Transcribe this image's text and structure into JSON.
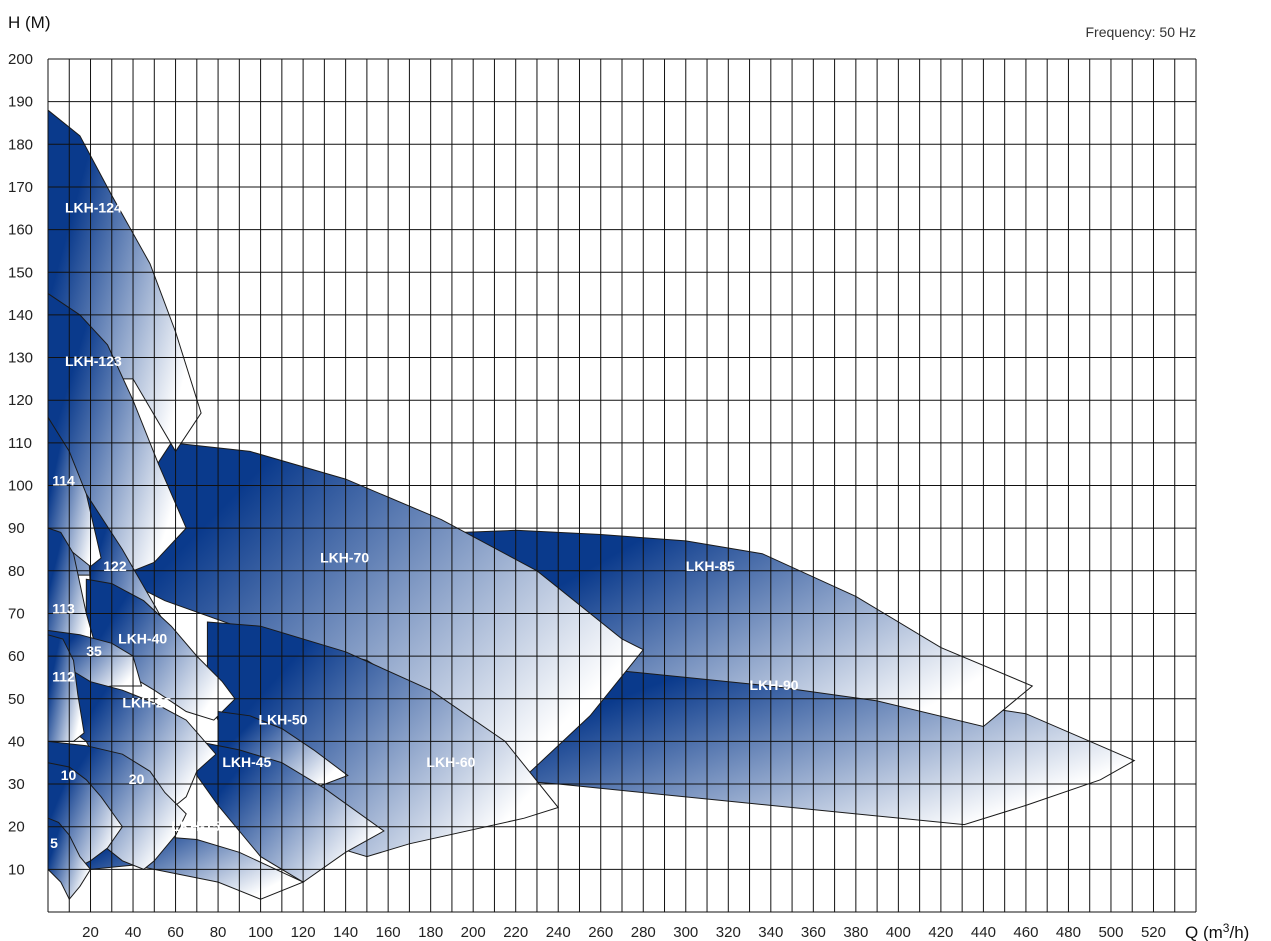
{
  "frequency_label": "Frequency: 50 Hz",
  "colors": {
    "dark": "#0a3a8c",
    "light": "#ffffff",
    "grid": "#111111"
  },
  "chart_data": {
    "type": "area",
    "title": "",
    "xlabel": "Q (m³/h)",
    "ylabel": "H (M)",
    "xlim": [
      0,
      540
    ],
    "ylim": [
      0,
      200
    ],
    "x_ticks": [
      20,
      40,
      60,
      80,
      100,
      120,
      140,
      160,
      180,
      200,
      220,
      240,
      260,
      280,
      300,
      320,
      340,
      360,
      380,
      400,
      420,
      440,
      460,
      480,
      500,
      520
    ],
    "x_tick_labels": [
      "20",
      "40",
      "60",
      "80",
      "100",
      "120",
      "140",
      "160",
      "180",
      "200",
      "220",
      "240",
      "260",
      "280",
      "300",
      "320",
      "340",
      "360",
      "380",
      "400",
      "420",
      "440",
      "460",
      "480",
      "500",
      "520"
    ],
    "y_ticks": [
      10,
      20,
      30,
      40,
      50,
      60,
      70,
      80,
      90,
      100,
      110,
      120,
      130,
      140,
      150,
      160,
      170,
      180,
      190,
      200
    ],
    "y_tick_labels": [
      "10",
      "20",
      "30",
      "40",
      "50",
      "60",
      "70",
      "80",
      "90",
      "100",
      "110",
      "120",
      "130",
      "140",
      "150",
      "160",
      "170",
      "180",
      "190",
      "200"
    ],
    "grid": true,
    "series": [
      {
        "name": "LKH-90",
        "label_pos": [
          330,
          52
        ],
        "poly": [
          [
            195,
            55
          ],
          [
            270,
            56.5
          ],
          [
            335,
            54.5
          ],
          [
            400,
            51
          ],
          [
            460,
            46.5
          ],
          [
            511,
            35.5
          ],
          [
            495,
            31
          ],
          [
            460,
            25
          ],
          [
            431,
            20.5
          ],
          [
            380,
            23
          ],
          [
            340,
            25
          ],
          [
            280,
            28
          ],
          [
            240,
            30
          ],
          [
            215,
            31
          ]
        ]
      },
      {
        "name": "LKH-85",
        "label_pos": [
          300,
          80
        ],
        "poly": [
          [
            195,
            89
          ],
          [
            220,
            89.5
          ],
          [
            260,
            88.5
          ],
          [
            300,
            87
          ],
          [
            336,
            84
          ],
          [
            380,
            74
          ],
          [
            420,
            62
          ],
          [
            463,
            53
          ],
          [
            440,
            43.5
          ],
          [
            390,
            49.5
          ],
          [
            340,
            53
          ],
          [
            300,
            55
          ],
          [
            270,
            56.5
          ],
          [
            240,
            57.5
          ],
          [
            195,
            58
          ]
        ]
      },
      {
        "name": "LKH-70",
        "label_pos": [
          128,
          82
        ],
        "poly": [
          [
            25,
            85
          ],
          [
            58,
            110
          ],
          [
            95,
            108
          ],
          [
            140,
            101.5
          ],
          [
            185,
            92
          ],
          [
            230,
            80
          ],
          [
            270,
            64
          ],
          [
            280,
            61.5
          ],
          [
            255,
            46
          ],
          [
            225,
            32
          ],
          [
            195,
            45
          ],
          [
            150,
            59
          ],
          [
            100,
            65
          ],
          [
            55,
            73
          ],
          [
            35,
            78
          ]
        ]
      },
      {
        "name": "LKH-60",
        "label_pos": [
          178,
          34
        ],
        "poly": [
          [
            75,
            68
          ],
          [
            100,
            67
          ],
          [
            140,
            61
          ],
          [
            180,
            52
          ],
          [
            215,
            40
          ],
          [
            240,
            24.5
          ],
          [
            224,
            22
          ],
          [
            170,
            16
          ],
          [
            150,
            13
          ],
          [
            140,
            14.5
          ],
          [
            110,
            22
          ],
          [
            90,
            35
          ],
          [
            75,
            50
          ]
        ]
      },
      {
        "name": "LKH-124",
        "label_pos": [
          8,
          164
        ],
        "poly": [
          [
            0,
            188
          ],
          [
            15,
            182
          ],
          [
            30,
            168
          ],
          [
            48,
            152
          ],
          [
            60,
            136
          ],
          [
            72,
            117
          ],
          [
            60,
            108
          ],
          [
            40,
            125
          ],
          [
            0,
            125
          ]
        ]
      },
      {
        "name": "LKH-123",
        "label_pos": [
          8,
          128
        ],
        "poly": [
          [
            0,
            145
          ],
          [
            15,
            140
          ],
          [
            28,
            133
          ],
          [
            40,
            120
          ],
          [
            52,
            105
          ],
          [
            65,
            90
          ],
          [
            50,
            82
          ],
          [
            35,
            79
          ],
          [
            0,
            79
          ]
        ]
      },
      {
        "name": "122",
        "label_pos": [
          26,
          80
        ],
        "poly": [
          [
            18,
            98
          ],
          [
            35,
            85
          ],
          [
            50,
            72
          ],
          [
            60,
            63
          ],
          [
            50,
            58
          ],
          [
            30,
            65
          ],
          [
            20,
            75
          ]
        ]
      },
      {
        "name": "114",
        "label_pos": [
          2,
          100
        ],
        "poly": [
          [
            0,
            116
          ],
          [
            10,
            108
          ],
          [
            18,
            98
          ],
          [
            25,
            83
          ],
          [
            20,
            81
          ],
          [
            10,
            85
          ],
          [
            0,
            88
          ]
        ]
      },
      {
        "name": "LKH-40",
        "label_pos": [
          33,
          63
        ],
        "poly": [
          [
            18,
            78
          ],
          [
            30,
            77
          ],
          [
            45,
            73
          ],
          [
            58,
            67
          ],
          [
            70,
            60
          ],
          [
            82,
            54
          ],
          [
            88,
            50
          ],
          [
            78,
            45
          ],
          [
            65,
            47
          ],
          [
            50,
            52
          ],
          [
            30,
            58
          ],
          [
            18,
            60
          ]
        ]
      },
      {
        "name": "113",
        "label_pos": [
          2,
          70
        ],
        "poly": [
          [
            0,
            90
          ],
          [
            6,
            89
          ],
          [
            12,
            84
          ],
          [
            15,
            77
          ],
          [
            18,
            70
          ],
          [
            22,
            63
          ],
          [
            14,
            63
          ],
          [
            0,
            63
          ]
        ]
      },
      {
        "name": "35",
        "label_pos": [
          18,
          60
        ],
        "poly": [
          [
            0,
            66
          ],
          [
            15,
            65
          ],
          [
            30,
            63
          ],
          [
            40,
            60
          ],
          [
            44,
            53
          ],
          [
            30,
            53
          ],
          [
            15,
            52
          ],
          [
            0,
            52
          ]
        ]
      },
      {
        "name": "LKH-50",
        "label_pos": [
          99,
          44
        ],
        "poly": [
          [
            80,
            47
          ],
          [
            95,
            46
          ],
          [
            110,
            43
          ],
          [
            125,
            38
          ],
          [
            141,
            32
          ],
          [
            125,
            29
          ],
          [
            100,
            33
          ],
          [
            80,
            38
          ]
        ]
      },
      {
        "name": "LKH-45",
        "label_pos": [
          82,
          34
        ],
        "poly": [
          [
            70,
            40
          ],
          [
            90,
            38
          ],
          [
            110,
            35
          ],
          [
            130,
            29
          ],
          [
            158,
            19
          ],
          [
            140,
            14
          ],
          [
            120,
            7
          ],
          [
            100,
            13
          ],
          [
            80,
            25
          ],
          [
            70,
            32
          ]
        ]
      },
      {
        "name": "LKH-15",
        "label_pos": [
          58,
          19
        ],
        "poly": [
          [
            10,
            20
          ],
          [
            25,
            18
          ],
          [
            45,
            18
          ],
          [
            70,
            17
          ],
          [
            90,
            14
          ],
          [
            120,
            7
          ],
          [
            100,
            3
          ],
          [
            80,
            7
          ],
          [
            60,
            9
          ],
          [
            40,
            11
          ],
          [
            20,
            10
          ],
          [
            10,
            11
          ]
        ]
      },
      {
        "name": "LKH-25",
        "label_pos": [
          35,
          48
        ],
        "poly": [
          [
            10,
            57
          ],
          [
            20,
            54
          ],
          [
            35,
            52
          ],
          [
            50,
            49
          ],
          [
            65,
            45
          ],
          [
            79,
            37
          ],
          [
            70,
            33
          ],
          [
            65,
            27
          ],
          [
            60,
            25
          ],
          [
            50,
            25
          ],
          [
            35,
            28
          ],
          [
            25,
            33
          ],
          [
            18,
            40
          ],
          [
            10,
            43
          ]
        ]
      },
      {
        "name": "112",
        "label_pos": [
          2,
          54
        ],
        "poly": [
          [
            0,
            65
          ],
          [
            7,
            64
          ],
          [
            12,
            59
          ],
          [
            14,
            51
          ],
          [
            17,
            42
          ],
          [
            12,
            40
          ],
          [
            6,
            40
          ],
          [
            0,
            40
          ]
        ]
      },
      {
        "name": "20",
        "label_pos": [
          38,
          30
        ],
        "poly": [
          [
            0,
            40
          ],
          [
            18,
            39
          ],
          [
            35,
            37
          ],
          [
            48,
            33
          ],
          [
            55,
            28
          ],
          [
            65,
            23
          ],
          [
            60,
            18
          ],
          [
            50,
            12
          ],
          [
            45,
            10
          ],
          [
            35,
            12
          ],
          [
            25,
            16
          ],
          [
            15,
            20
          ],
          [
            0,
            20
          ]
        ]
      },
      {
        "name": "10",
        "label_pos": [
          6,
          31
        ],
        "poly": [
          [
            0,
            35
          ],
          [
            10,
            34
          ],
          [
            18,
            31
          ],
          [
            25,
            27
          ],
          [
            35,
            20
          ],
          [
            28,
            15
          ],
          [
            20,
            12
          ],
          [
            12,
            10
          ],
          [
            5,
            11
          ],
          [
            0,
            12
          ]
        ]
      },
      {
        "name": "5",
        "label_pos": [
          1,
          15
        ],
        "poly": [
          [
            0,
            22
          ],
          [
            5,
            21
          ],
          [
            10,
            18
          ],
          [
            15,
            13
          ],
          [
            20,
            10
          ],
          [
            15,
            6
          ],
          [
            10,
            3
          ],
          [
            6,
            7
          ],
          [
            0,
            10
          ]
        ]
      }
    ]
  }
}
